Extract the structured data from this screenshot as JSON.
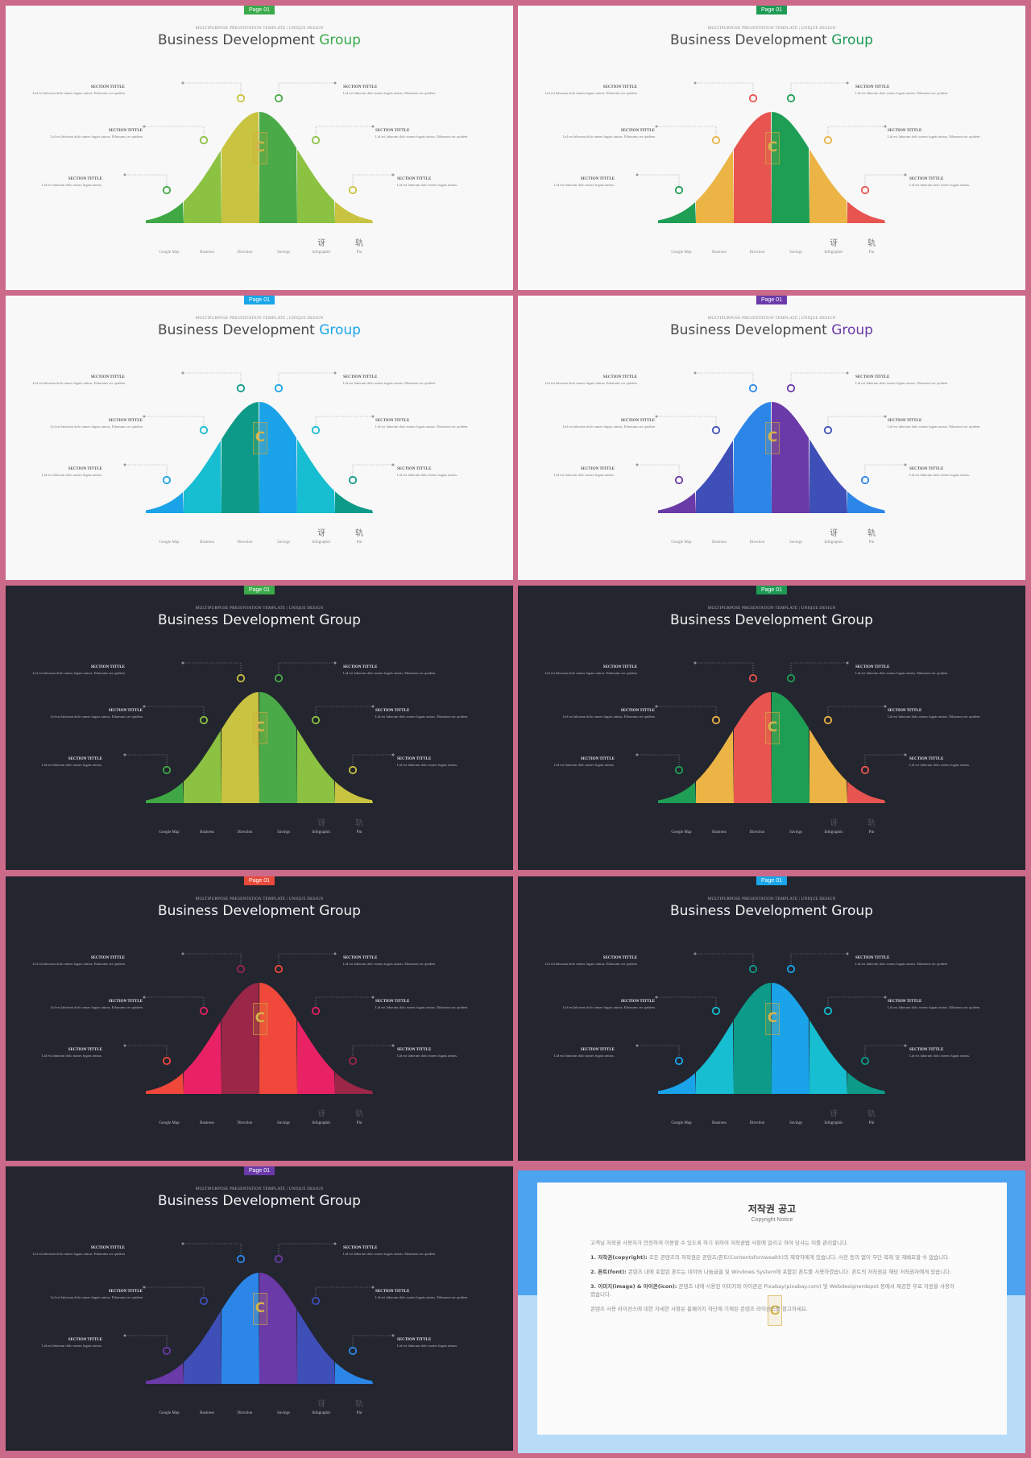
{
  "subtitle": "MULTIPURPOSE PRESENTATION TEMPLATE | UNIQUE DESIGN",
  "title_main": "Business Development ",
  "title_accent": "Group",
  "page_tag": "Page 01",
  "callout_head": "SECTION TITTLE",
  "callout_body": "Lid est laborum dolo rumes fugats untras. Etharums ser quidem",
  "callout_body_long": "Lid est laborum dolo rumes fugats untras. Etharums ser quidem",
  "callout_body_short": "Lid est laborum dolo rumes fugats untras.",
  "axis_labels": [
    "Google Map",
    "Business",
    "Direction",
    "Savings",
    "Infographic",
    "Pin"
  ],
  "glyphs": [
    "讶",
    "轨"
  ],
  "logo_letter": "C",
  "slides": [
    {
      "theme": "light",
      "tag_color": "#3aaa4a",
      "accent": "#3aaa4a",
      "title_accent_colored": true,
      "bands": [
        "#3fa845",
        "#8cc241",
        "#c8c340",
        "#4aaa48",
        "#8cc241",
        "#c8c340"
      ],
      "ring_colors": [
        "#3fa845",
        "#8cc241",
        "#c8c340",
        "#4aaa48",
        "#8cc241",
        "#c8c340"
      ]
    },
    {
      "theme": "light",
      "tag_color": "#1e9a55",
      "accent": "#1e9a55",
      "title_accent_colored": true,
      "bands": [
        "#1f9e55",
        "#ebb445",
        "#e85450",
        "#1e9e55",
        "#ebb445",
        "#e85450"
      ],
      "ring_colors": [
        "#1f9e55",
        "#ebb445",
        "#e85450",
        "#1e9e55",
        "#ebb445",
        "#e85450"
      ]
    },
    {
      "theme": "light",
      "tag_color": "#1aa6e8",
      "accent": "#1aa6e8",
      "title_accent_colored": true,
      "bands": [
        "#1aa3e8",
        "#17bdd0",
        "#0e9a88",
        "#1aa3e8",
        "#17bdd0",
        "#0e9a88"
      ],
      "ring_colors": [
        "#1aa3e8",
        "#17bdd0",
        "#0e9a88",
        "#1aa3e8",
        "#17bdd0",
        "#0e9a88"
      ]
    },
    {
      "theme": "light",
      "tag_color": "#6a3aa8",
      "accent": "#6a3aa8",
      "title_accent_colored": true,
      "bands": [
        "#6a3aa8",
        "#3f4fb8",
        "#2c86e8",
        "#6a3aa8",
        "#3f4fb8",
        "#2c86e8"
      ],
      "ring_colors": [
        "#6a3aa8",
        "#3f4fb8",
        "#2c86e8",
        "#6a3aa8",
        "#3f4fb8",
        "#2c86e8"
      ]
    },
    {
      "theme": "dark",
      "tag_color": "#3aaa4a",
      "accent": "#f2f2f2",
      "title_accent_colored": false,
      "bands": [
        "#3fa845",
        "#8cc241",
        "#c8c340",
        "#4aaa48",
        "#8cc241",
        "#c8c340"
      ],
      "ring_colors": [
        "#3fa845",
        "#8cc241",
        "#c8c340",
        "#4aaa48",
        "#8cc241",
        "#c8c340"
      ]
    },
    {
      "theme": "dark",
      "tag_color": "#1e9a55",
      "accent": "#f2f2f2",
      "title_accent_colored": false,
      "bands": [
        "#1f9e55",
        "#ebb445",
        "#e85450",
        "#1e9e55",
        "#ebb445",
        "#e85450"
      ],
      "ring_colors": [
        "#1f9e55",
        "#ebb445",
        "#e85450",
        "#1e9e55",
        "#ebb445",
        "#e85450"
      ]
    },
    {
      "theme": "dark",
      "tag_color": "#e84a3a",
      "accent": "#f2f2f2",
      "title_accent_colored": false,
      "bands": [
        "#f0483a",
        "#e82264",
        "#9a2648",
        "#f0483a",
        "#e82264",
        "#9a2648"
      ],
      "ring_colors": [
        "#f0483a",
        "#e82264",
        "#9a2648",
        "#f0483a",
        "#e82264",
        "#9a2648"
      ]
    },
    {
      "theme": "dark",
      "tag_color": "#1aa6e8",
      "accent": "#f2f2f2",
      "title_accent_colored": false,
      "bands": [
        "#1aa3e8",
        "#17bdd0",
        "#0e9a88",
        "#1aa3e8",
        "#17bdd0",
        "#0e9a88"
      ],
      "ring_colors": [
        "#1aa3e8",
        "#17bdd0",
        "#0e9a88",
        "#1aa3e8",
        "#17bdd0",
        "#0e9a88"
      ]
    },
    {
      "theme": "dark",
      "tag_color": "#6a3aa8",
      "accent": "#f2f2f2",
      "title_accent_colored": false,
      "bands": [
        "#6a3aa8",
        "#3f4fb8",
        "#2c86e8",
        "#6a3aa8",
        "#3f4fb8",
        "#2c86e8"
      ],
      "ring_colors": [
        "#6a3aa8",
        "#3f4fb8",
        "#2c86e8",
        "#6a3aa8",
        "#3f4fb8",
        "#2c86e8"
      ]
    }
  ],
  "notice": {
    "title": "저작권 공고",
    "subtitle": "Copyright Notice",
    "paragraphs": [
      {
        "head": "",
        "text": "고객님 저작권 사용자가 안전하게 이용할 수 있도록 하기 위하여 저작권법 사항에 알리고 하여 당사는 이를 관리합니다."
      },
      {
        "head": "1. 저작권(copyright):",
        "text": "모든 콘텐츠의 저작권은 콘텐츠/폰트(Contentsfontwealth)의 제작자에게 있습니다. 사전 동의 없이 무단 복제 및 재배포할 수 없습니다."
      },
      {
        "head": "2. 폰트(font):",
        "text": "콘텐츠 내에 포함된 폰트는 네이버 나눔글꼴 및 Windows System에 포함된 폰트를 사용하였습니다. 폰트의 저작권은 해당 저작권자에게 있습니다."
      },
      {
        "head": "3. 이미지(image) & 아이콘(icon):",
        "text": "콘텐츠 내에 사용된 이미지와 아이콘은 Pixabay(pixabay.com) 및 Webdesignerdepot 등에서 제공한 무료 자원을 사용하였습니다."
      },
      {
        "head": "",
        "text": "콘텐츠 사용 라이선스에 대한 자세한 사항은 홈페이지 하단에 기재된 콘텐츠 라이선스를 참고하세요."
      }
    ]
  }
}
